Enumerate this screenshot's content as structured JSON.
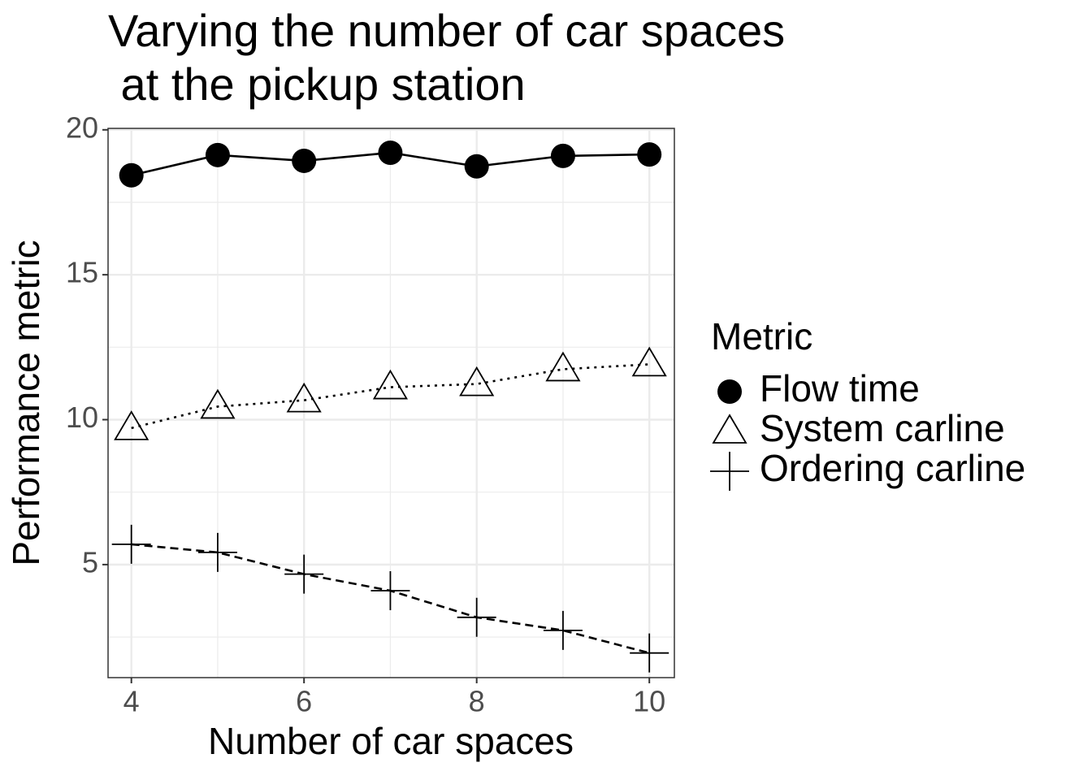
{
  "chart_data": {
    "type": "line",
    "title": [
      "Varying the number of car spaces",
      " at the pickup station"
    ],
    "x_label": "Number of car spaces",
    "y_label": "Performance metric",
    "legend_title": "Metric",
    "x": [
      4,
      5,
      6,
      7,
      8,
      9,
      10
    ],
    "series": [
      {
        "name": "Flow time",
        "color": "#000000",
        "shape": "circle",
        "linetype": "solid",
        "values": [
          18.43,
          19.13,
          18.93,
          19.21,
          18.74,
          19.1,
          19.15
        ]
      },
      {
        "name": "System carline",
        "color": "#000000",
        "shape": "triangle",
        "linetype": "dotted",
        "values": [
          9.71,
          10.45,
          10.67,
          11.12,
          11.23,
          11.74,
          11.91
        ]
      },
      {
        "name": "Ordering carline",
        "color": "#000000",
        "shape": "plus",
        "linetype": "dashed",
        "values": [
          5.7,
          5.42,
          4.67,
          4.1,
          3.18,
          2.73,
          1.95
        ]
      }
    ],
    "xlim": [
      3.73,
      10.29
    ],
    "xticks": [
      4,
      6,
      8,
      10
    ],
    "ylim": [
      1.1,
      20.05
    ],
    "yticks": [
      5,
      10,
      15,
      20
    ],
    "grid": true,
    "legend_position": "right"
  }
}
